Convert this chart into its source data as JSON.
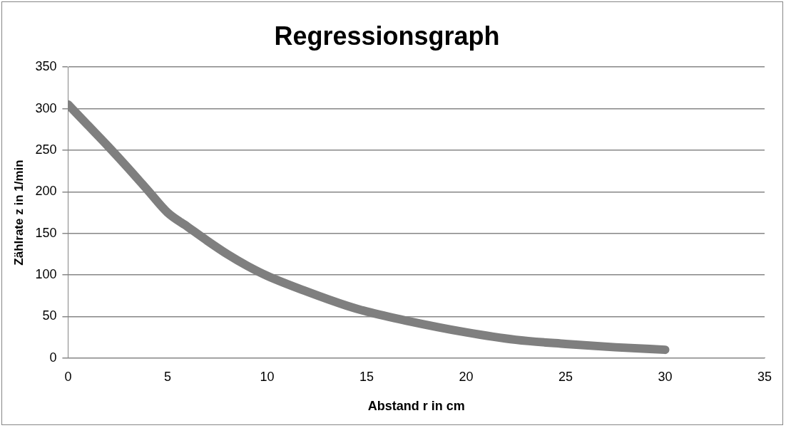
{
  "chart_data": {
    "type": "line",
    "title": "Regressionsgraph",
    "xlabel": "Abstand r in cm",
    "ylabel": "Zählrate z in 1/min",
    "x": [
      0,
      1,
      2,
      3,
      4,
      5,
      6,
      7,
      8,
      9,
      10,
      12,
      14,
      15,
      17,
      20,
      22.5,
      25,
      27.5,
      30
    ],
    "series": [
      {
        "color": "#7f7f7f",
        "values": [
          305,
          280,
          255,
          229,
          202,
          175,
          158,
          141,
          125,
          111,
          99,
          80,
          63,
          56,
          45,
          31,
          22,
          17,
          13,
          10
        ]
      }
    ],
    "xlim": [
      0,
      35
    ],
    "xticks": [
      0,
      5,
      10,
      15,
      20,
      25,
      30,
      35
    ],
    "ylim": [
      0,
      350
    ],
    "yticks": [
      0,
      50,
      100,
      150,
      200,
      250,
      300,
      350
    ],
    "grid": "y",
    "legend": false,
    "marker": "none",
    "line_style": "solid"
  }
}
